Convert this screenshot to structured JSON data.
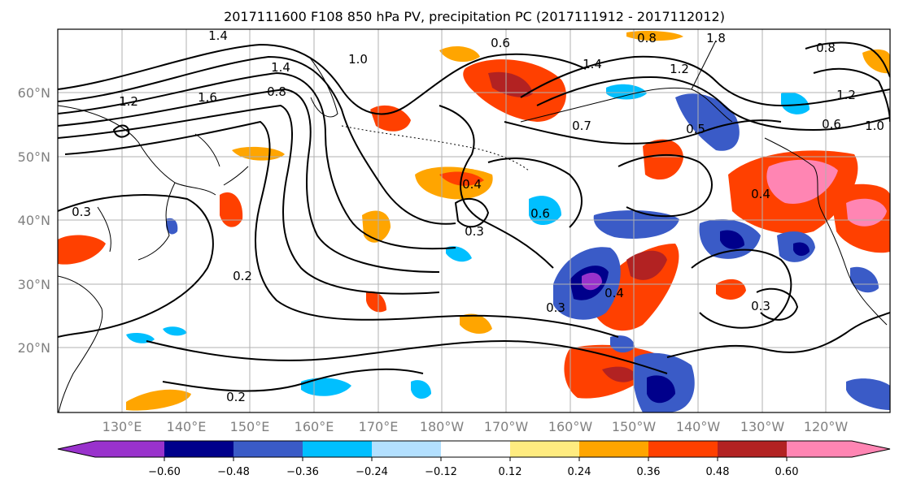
{
  "title": "2017111600 F108 850 hPa PV, precipitation PC (2017111912 - 2017112012)",
  "map": {
    "lat_ticks": [
      "60°N",
      "50°N",
      "40°N",
      "30°N",
      "20°N"
    ],
    "lon_ticks": [
      "130°E",
      "140°E",
      "150°E",
      "160°E",
      "170°E",
      "180°W",
      "170°W",
      "160°W",
      "150°W",
      "140°W",
      "130°W",
      "120°W"
    ],
    "contour_labels": [
      "1.4",
      "1.4",
      "1.6",
      "0.8",
      "1.2",
      "1.0",
      "0.6",
      "0.8",
      "1.4",
      "1.2",
      "1.8",
      "0.8",
      "1.2",
      "1.0",
      "0.6",
      "0.7",
      "0.5",
      "0.4",
      "0.3",
      "0.6",
      "0.4",
      "0.3",
      "0.4",
      "0.3",
      "0.3",
      "0.2",
      "0.2"
    ]
  },
  "colorbar": {
    "colors": [
      "#9932cc",
      "#00008b",
      "#3a5bc7",
      "#00bfff",
      "#b3e0ff",
      "#ffffff",
      "#ffec80",
      "#ffa500",
      "#ff4000",
      "#b22222",
      "#ff85b3"
    ],
    "tick_labels": [
      "−0.60",
      "−0.48",
      "−0.36",
      "−0.24",
      "−0.12",
      "0.12",
      "0.24",
      "0.36",
      "0.48",
      "0.60"
    ]
  }
}
